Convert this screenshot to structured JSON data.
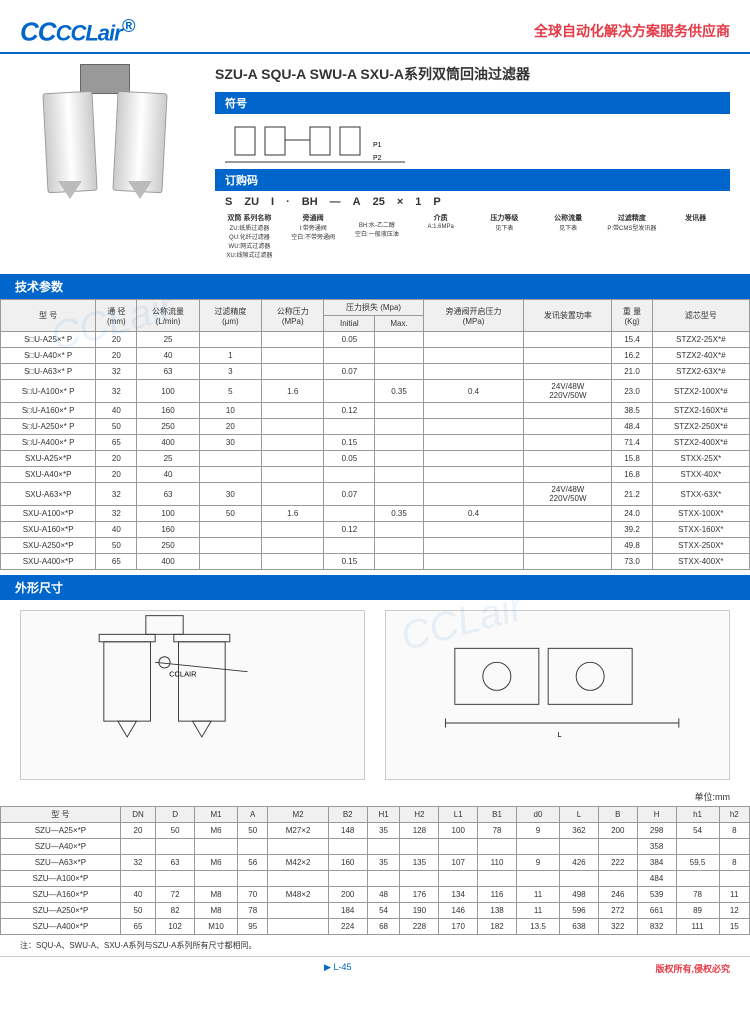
{
  "header": {
    "logo": "CCLair",
    "logo_reg": "®",
    "slogan": "全球自动化解决方案服务供应商"
  },
  "title": "SZU-A SQU-A SWU-A SXU-A系列双筒回油过滤器",
  "sections": {
    "symbol": "符号",
    "order": "订购码",
    "tech": "技术参数",
    "dims": "外形尺寸"
  },
  "order_code": {
    "parts": [
      "S",
      "ZU",
      "I",
      "·",
      "BH",
      "—",
      "A",
      "25",
      "×",
      "1",
      "P"
    ]
  },
  "order_labels": [
    "双筒 系列名称",
    "旁通阀",
    "",
    "介质",
    "压力等级",
    "公称流量",
    "过滤精度",
    "发讯器"
  ],
  "order_desc": [
    "ZU:纸质过滤器\nQU:化纤过滤器\nWU:网式过滤器\nXU:线隙式过滤器",
    "I:带旁通阀\n空白:不带旁通阀",
    "BH:水-乙二醇\n空白:一般液压油",
    "A:1.6MPa",
    "见下表",
    "见下表",
    "P:带CMS型发讯器"
  ],
  "tech_headers": [
    "型 号",
    "通 径\n(mm)",
    "公称流量\n(L/min)",
    "过滤精度\n(μm)",
    "公称压力\n(MPa)",
    "压力损失 (Mpa)",
    "",
    "旁通阀开启压力\n(MPa)",
    "发讯装置功率",
    "重 量\n(Kg)",
    "滤芯型号"
  ],
  "tech_sub": [
    "Initial",
    "Max."
  ],
  "tech_rows": [
    [
      "S□U-A25×* P",
      "20",
      "25",
      "",
      "",
      "0.05",
      "",
      "",
      "",
      "15.4",
      "STZX2-25X*#"
    ],
    [
      "S□U-A40×* P",
      "20",
      "40",
      "1",
      "",
      "",
      "",
      "",
      "",
      "16.2",
      "STZX2-40X*#"
    ],
    [
      "S□U-A63×* P",
      "32",
      "63",
      "3",
      "",
      "0.07",
      "",
      "",
      "",
      "21.0",
      "STZX2-63X*#"
    ],
    [
      "S□U-A100×* P",
      "32",
      "100",
      "5",
      "1.6",
      "",
      "0.35",
      "0.4",
      "24V/48W\n220V/50W",
      "23.0",
      "STZX2-100X*#"
    ],
    [
      "S□U-A160×* P",
      "40",
      "160",
      "10",
      "",
      "0.12",
      "",
      "",
      "",
      "38.5",
      "STZX2-160X*#"
    ],
    [
      "S□U-A250×* P",
      "50",
      "250",
      "20",
      "",
      "",
      "",
      "",
      "",
      "48.4",
      "STZX2-250X*#"
    ],
    [
      "S□U-A400×* P",
      "65",
      "400",
      "30",
      "",
      "0.15",
      "",
      "",
      "",
      "71.4",
      "STZX2-400X*#"
    ],
    [
      "SXU-A25×*P",
      "20",
      "25",
      "",
      "",
      "0.05",
      "",
      "",
      "",
      "15.8",
      "STXX-25X*"
    ],
    [
      "SXU-A40×*P",
      "20",
      "40",
      "",
      "",
      "",
      "",
      "",
      "",
      "16.8",
      "STXX-40X*"
    ],
    [
      "SXU-A63×*P",
      "32",
      "63",
      "30",
      "",
      "0.07",
      "",
      "",
      "24V/48W\n220V/50W",
      "21.2",
      "STXX-63X*"
    ],
    [
      "SXU-A100×*P",
      "32",
      "100",
      "50",
      "1.6",
      "",
      "0.35",
      "0.4",
      "",
      "24.0",
      "STXX-100X*"
    ],
    [
      "SXU-A160×*P",
      "40",
      "160",
      "",
      "",
      "0.12",
      "",
      "",
      "",
      "39.2",
      "STXX-160X*"
    ],
    [
      "SXU-A250×*P",
      "50",
      "250",
      "",
      "",
      "",
      "",
      "",
      "",
      "49.8",
      "STXX-250X*"
    ],
    [
      "SXU-A400×*P",
      "65",
      "400",
      "",
      "",
      "0.15",
      "",
      "",
      "",
      "73.0",
      "STXX-400X*"
    ]
  ],
  "dim_unit": "单位:mm",
  "dim_headers": [
    "型 号",
    "DN",
    "D",
    "M1",
    "A",
    "M2",
    "B2",
    "H1",
    "H2",
    "L1",
    "B1",
    "d0",
    "L",
    "B",
    "H",
    "h1",
    "h2"
  ],
  "dim_rows": [
    [
      "SZU—A25×*P",
      "20",
      "50",
      "M6",
      "50",
      "M27×2",
      "148",
      "35",
      "128",
      "100",
      "78",
      "9",
      "362",
      "200",
      "298",
      "54",
      "8"
    ],
    [
      "SZU—A40×*P",
      "",
      "",
      "",
      "",
      "",
      "",
      "",
      "",
      "",
      "",
      "",
      "",
      "",
      "358",
      "",
      ""
    ],
    [
      "SZU—A63×*P",
      "32",
      "63",
      "M6",
      "56",
      "M42×2",
      "160",
      "35",
      "135",
      "107",
      "110",
      "9",
      "426",
      "222",
      "384",
      "59.5",
      "8"
    ],
    [
      "SZU—A100×*P",
      "",
      "",
      "",
      "",
      "",
      "",
      "",
      "",
      "",
      "",
      "",
      "",
      "",
      "484",
      "",
      ""
    ],
    [
      "SZU—A160×*P",
      "40",
      "72",
      "M8",
      "70",
      "M48×2",
      "200",
      "48",
      "176",
      "134",
      "116",
      "11",
      "498",
      "246",
      "539",
      "78",
      "11"
    ],
    [
      "SZU—A250×*P",
      "50",
      "82",
      "M8",
      "78",
      "",
      "184",
      "54",
      "190",
      "146",
      "138",
      "11",
      "596",
      "272",
      "661",
      "89",
      "12"
    ],
    [
      "SZU—A400×*P",
      "65",
      "102",
      "M10",
      "95",
      "",
      "224",
      "68",
      "228",
      "170",
      "182",
      "13.5",
      "638",
      "322",
      "832",
      "111",
      "15"
    ]
  ],
  "footnote": "注：SQU-A、SWU-A、SXU-A系列与SZU-A系列所有尺寸都相同。",
  "footer": {
    "page": "L-45",
    "copyright": "版权所有,侵权必究"
  },
  "colors": {
    "brand": "#0066cc",
    "accent": "#e63946"
  }
}
